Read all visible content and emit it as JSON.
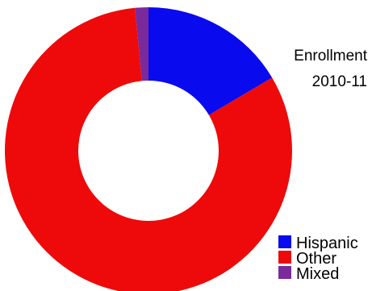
{
  "chart_data": {
    "type": "pie",
    "variant": "donut",
    "title_lines": [
      "Enrollment",
      "2010-11"
    ],
    "categories": [
      "Hispanic",
      "Other",
      "Mixed"
    ],
    "values": [
      16.5,
      82,
      1.5
    ],
    "colors": [
      "#0a0aee",
      "#ee0a0a",
      "#7a2a9a"
    ],
    "legend": {
      "placement": "bottom-right",
      "entries": [
        "Hispanic",
        "Other",
        "Mixed"
      ]
    }
  }
}
